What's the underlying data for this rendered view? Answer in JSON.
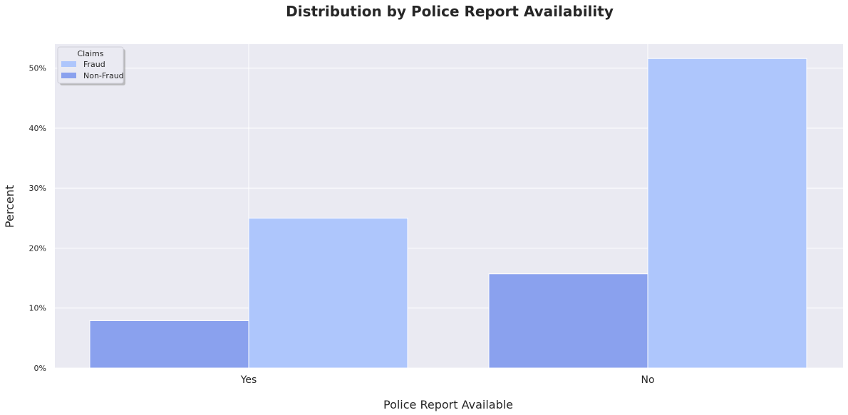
{
  "chart_data": {
    "type": "bar",
    "title": "Distribution by Police Report Availability",
    "xlabel": "Police Report Available",
    "ylabel": "Percent",
    "categories": [
      "Yes",
      "No"
    ],
    "ylim": [
      0,
      54
    ],
    "y_ticks": [
      0,
      10,
      20,
      30,
      40,
      50
    ],
    "y_tick_labels": [
      "0%",
      "10%",
      "20%",
      "30%",
      "40%",
      "50%"
    ],
    "grid": true,
    "legend": {
      "title": "Claims",
      "placement": "top-left",
      "entries": [
        "Fraud",
        "Non-Fraud"
      ]
    },
    "series": [
      {
        "name": "Non-Fraud",
        "values": [
          7.9,
          15.7
        ],
        "color": "#8aa1ee"
      },
      {
        "name": "Fraud",
        "values": [
          25.0,
          51.6
        ],
        "color": "#aec6fc"
      }
    ]
  },
  "colors": {
    "plot_background": "#eaeaf2",
    "grid": "#ffffff",
    "fraud": "#aec6fc",
    "non_fraud": "#8aa1ee"
  }
}
